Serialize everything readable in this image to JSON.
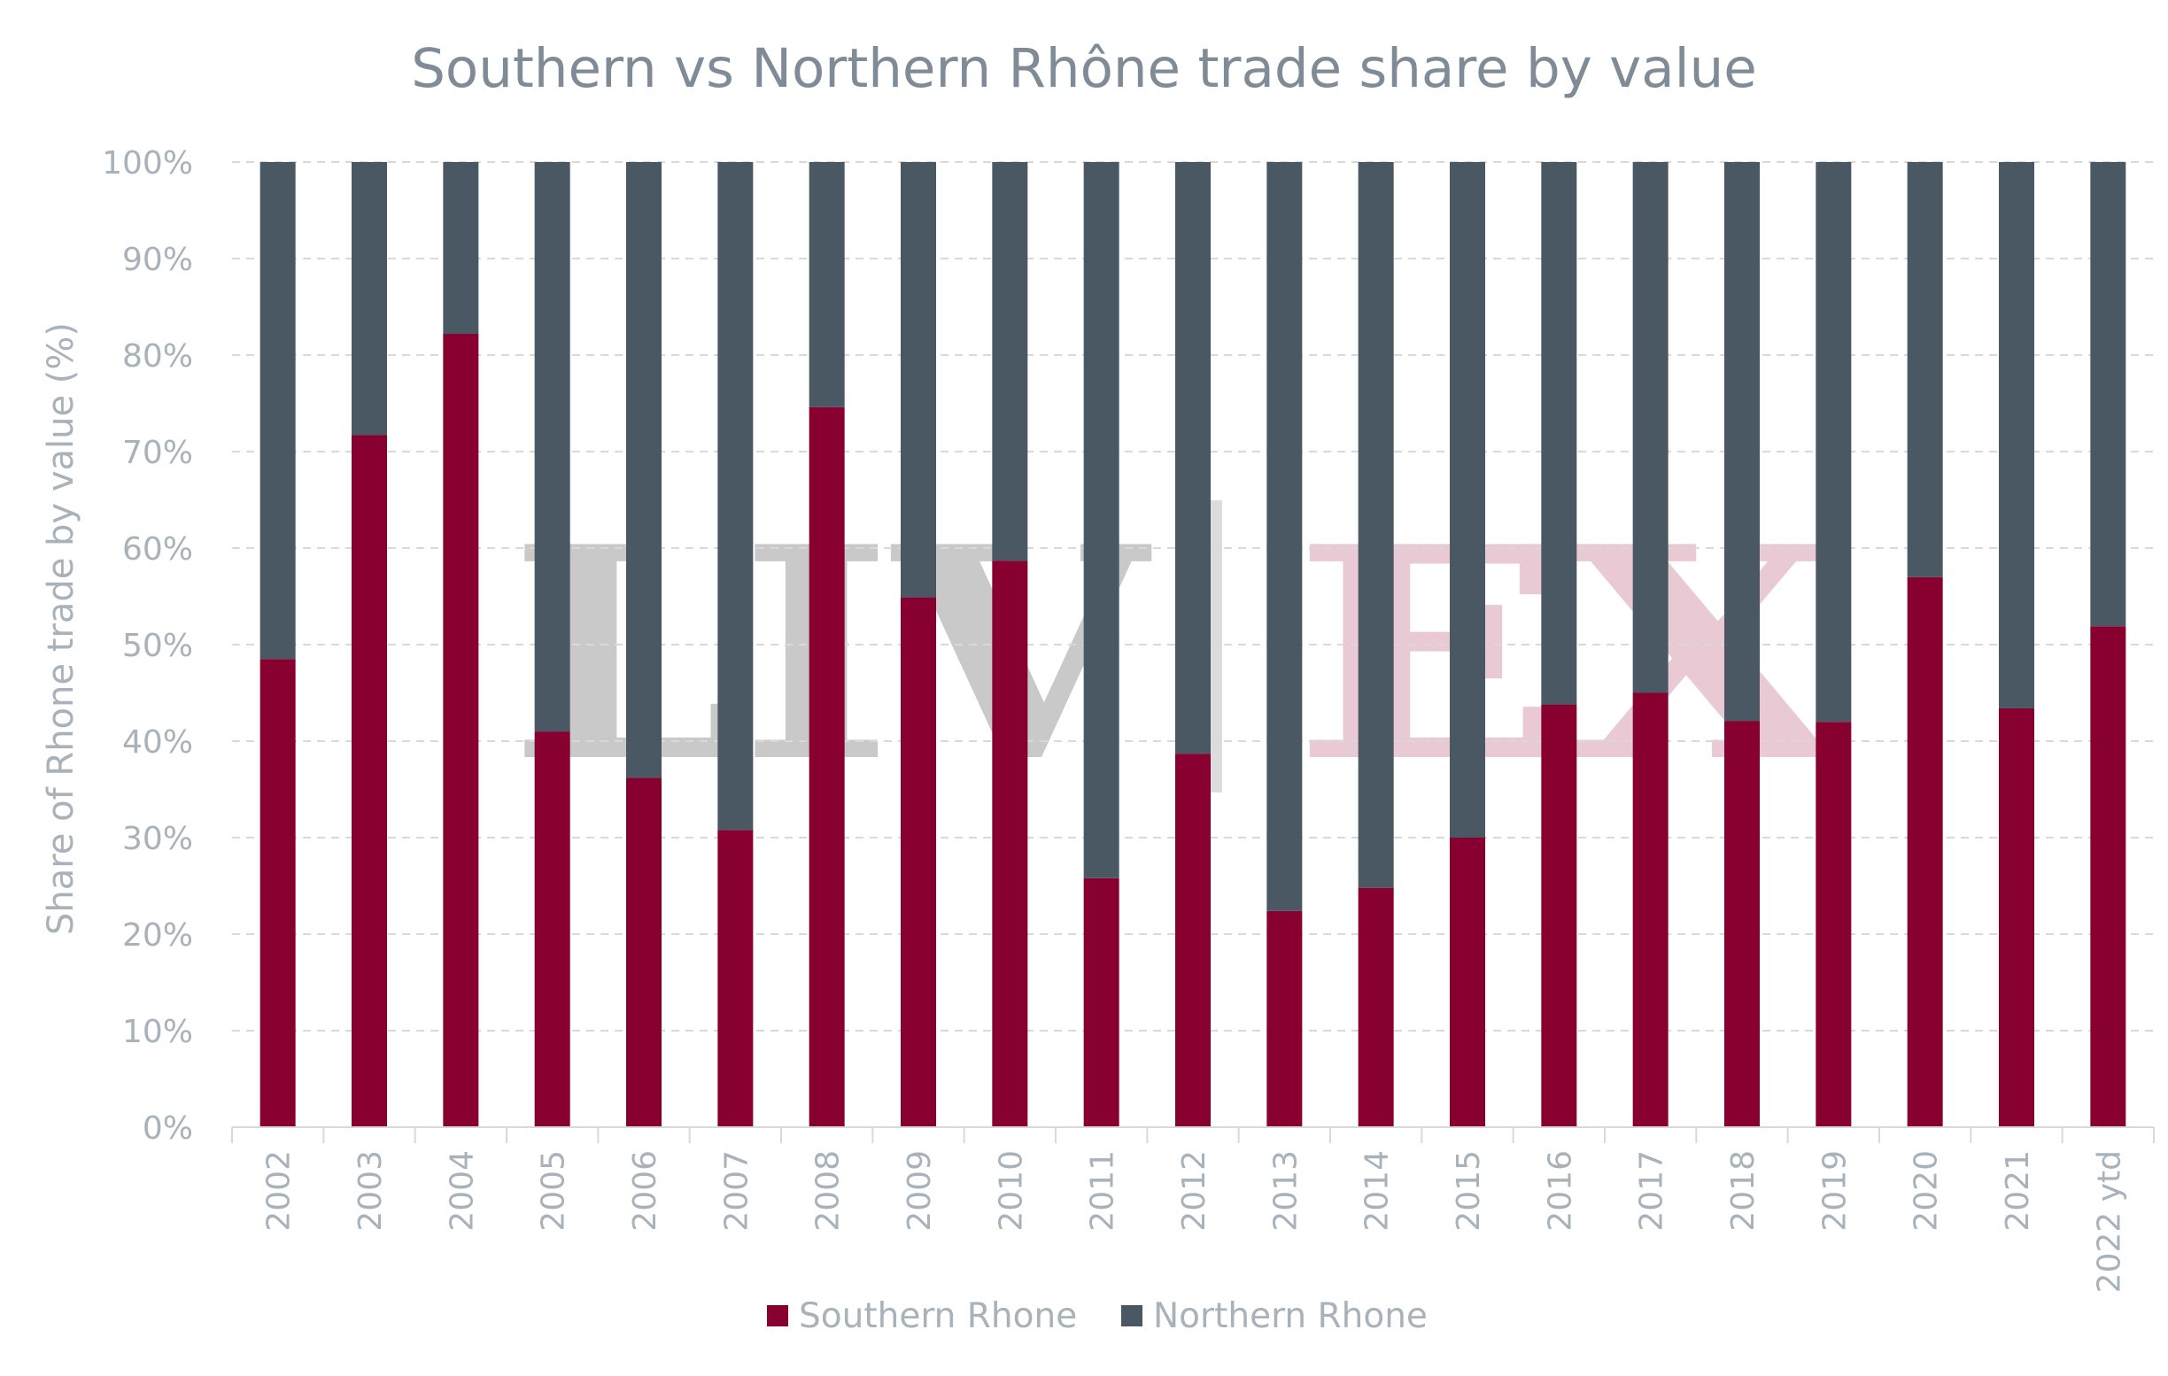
{
  "chart_data": {
    "type": "bar",
    "stacked": true,
    "title": "Southern vs Northern Rhône trade share by value",
    "xlabel": "",
    "ylabel": "Share of Rhone trade by value (%)",
    "ylim": [
      0,
      100
    ],
    "yticks": [
      "0%",
      "10%",
      "20%",
      "30%",
      "40%",
      "50%",
      "60%",
      "70%",
      "80%",
      "90%",
      "100%"
    ],
    "grid": true,
    "legend_position": "bottom",
    "categories": [
      "2002",
      "2003",
      "2004",
      "2005",
      "2006",
      "2007",
      "2008",
      "2009",
      "2010",
      "2011",
      "2012",
      "2013",
      "2014",
      "2015",
      "2016",
      "2017",
      "2018",
      "2019",
      "2020",
      "2021",
      "2022 ytd"
    ],
    "series": [
      {
        "name": "Southern Rhone",
        "color": "#870030",
        "values": [
          48.5,
          71.7,
          82.2,
          41.0,
          36.2,
          30.8,
          74.6,
          54.9,
          58.7,
          25.8,
          38.7,
          22.4,
          24.8,
          30.0,
          43.8,
          45.0,
          42.1,
          42.0,
          57.0,
          43.4,
          51.9
        ]
      },
      {
        "name": "Northern Rhone",
        "color": "#4a5863",
        "values": [
          51.5,
          28.3,
          17.8,
          59.0,
          63.8,
          69.2,
          25.4,
          45.1,
          41.3,
          74.2,
          61.3,
          77.6,
          75.2,
          70.0,
          56.2,
          55.0,
          57.9,
          58.0,
          43.0,
          56.6,
          48.1
        ]
      }
    ],
    "watermark": {
      "left": "LIV",
      "right": "EX",
      "left_color": "#c9c9c9",
      "right_color": "#e9c9d3",
      "divider_color": "#dcdcdc"
    }
  }
}
